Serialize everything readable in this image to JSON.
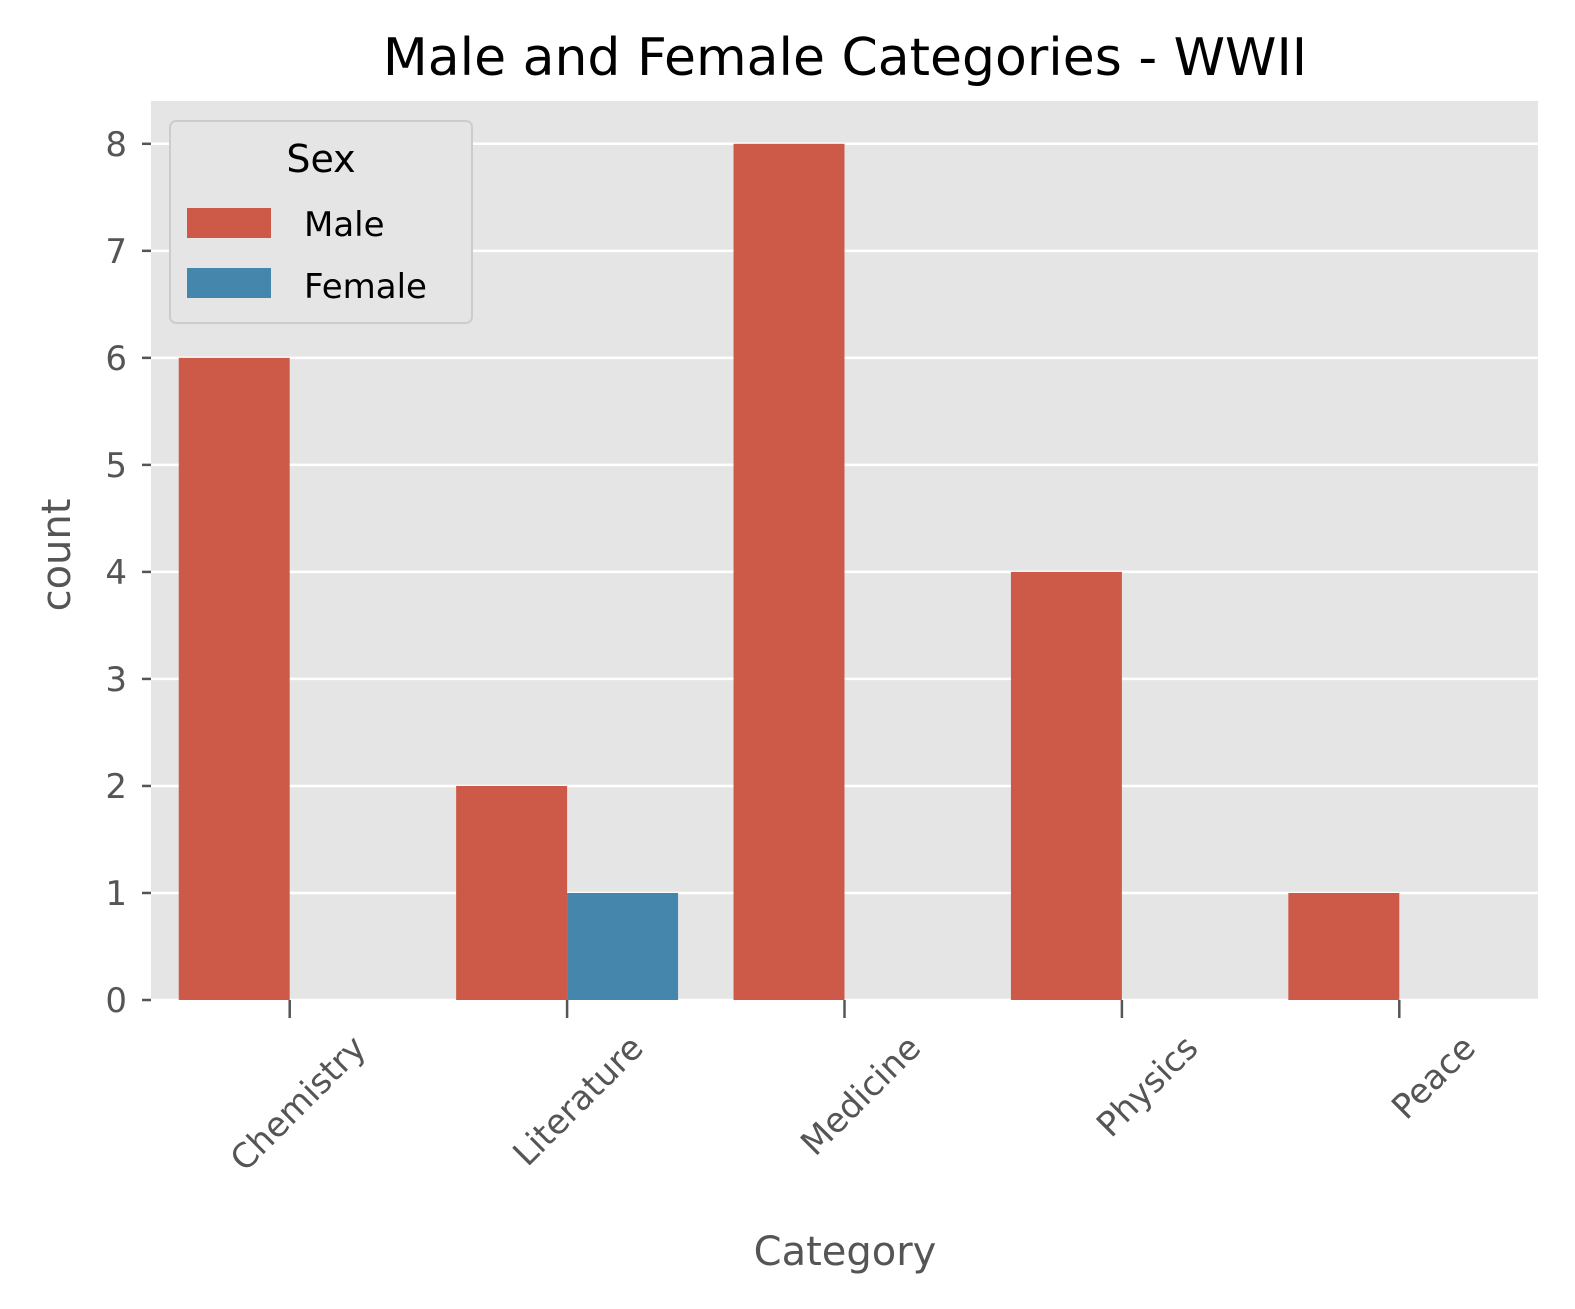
{
  "chart_data": {
    "type": "bar",
    "title": "Male and Female Categories - WWII",
    "xlabel": "Category",
    "ylabel": "count",
    "categories": [
      "Chemistry",
      "Literature",
      "Medicine",
      "Physics",
      "Peace"
    ],
    "series": [
      {
        "name": "Male",
        "values": [
          6,
          2,
          8,
          4,
          1
        ],
        "color": "#cd5a48"
      },
      {
        "name": "Female",
        "values": [
          0,
          1,
          0,
          0,
          0
        ],
        "color": "#4586ad"
      }
    ],
    "ylim": [
      0,
      8.4
    ],
    "yticks": [
      0,
      1,
      2,
      3,
      4,
      5,
      6,
      7,
      8
    ],
    "grid": true,
    "legend": {
      "title": "Sex",
      "position": "top-left"
    },
    "colors": {
      "background": "#e5e5e5",
      "grid": "#ffffff"
    }
  }
}
